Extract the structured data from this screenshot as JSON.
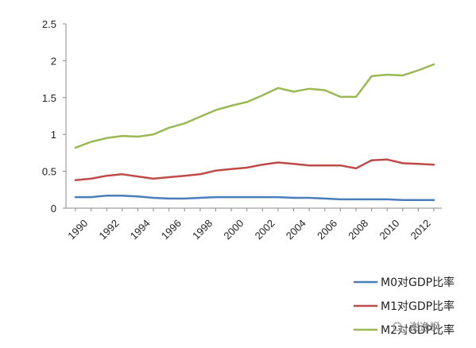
{
  "chart_data": {
    "type": "line",
    "x": [
      1990,
      1991,
      1992,
      1993,
      1994,
      1995,
      1996,
      1997,
      1998,
      1999,
      2000,
      2001,
      2002,
      2003,
      2004,
      2005,
      2006,
      2007,
      2008,
      2009,
      2010,
      2011,
      2012,
      2013
    ],
    "x_tick_labels": [
      "1990",
      "1992",
      "1994",
      "1996",
      "1998",
      "2000",
      "2002",
      "2004",
      "2006",
      "2008",
      "2010",
      "2012"
    ],
    "y_tick_labels": [
      "0",
      "0.5",
      "1",
      "1.5",
      "2",
      "2.5"
    ],
    "ylim": [
      0,
      2.5
    ],
    "grid": false,
    "legend_position": "bottom-right",
    "series": [
      {
        "name": "M0对GDP比率",
        "color": "#4a7ebb",
        "values": [
          0.15,
          0.15,
          0.17,
          0.17,
          0.16,
          0.14,
          0.13,
          0.13,
          0.14,
          0.15,
          0.15,
          0.15,
          0.15,
          0.15,
          0.14,
          0.14,
          0.13,
          0.12,
          0.12,
          0.12,
          0.12,
          0.11,
          0.11,
          0.11
        ]
      },
      {
        "name": "M1对GDP比率",
        "color": "#be4b48",
        "values": [
          0.38,
          0.4,
          0.44,
          0.46,
          0.43,
          0.4,
          0.42,
          0.44,
          0.46,
          0.51,
          0.53,
          0.55,
          0.59,
          0.62,
          0.6,
          0.58,
          0.58,
          0.58,
          0.54,
          0.65,
          0.66,
          0.61,
          0.6,
          0.59
        ]
      },
      {
        "name": "M2对GDP比率",
        "color": "#98b954",
        "values": [
          0.82,
          0.9,
          0.95,
          0.98,
          0.97,
          1.0,
          1.09,
          1.15,
          1.24,
          1.33,
          1.39,
          1.44,
          1.53,
          1.63,
          1.58,
          1.62,
          1.6,
          1.51,
          1.51,
          1.79,
          1.81,
          1.8,
          1.87,
          1.95
        ]
      }
    ]
  },
  "watermark": "谢逸枫"
}
